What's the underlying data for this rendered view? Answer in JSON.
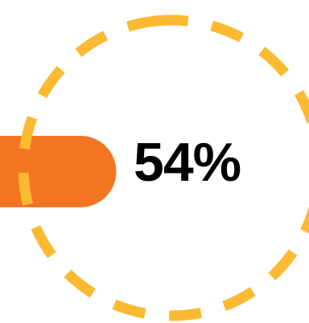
{
  "progress": {
    "value": 0.54,
    "label": "54%",
    "fill_color": "#F47521",
    "ring_color": "#FBBA32",
    "ring_style": "dashed",
    "text_color": "#000000"
  }
}
